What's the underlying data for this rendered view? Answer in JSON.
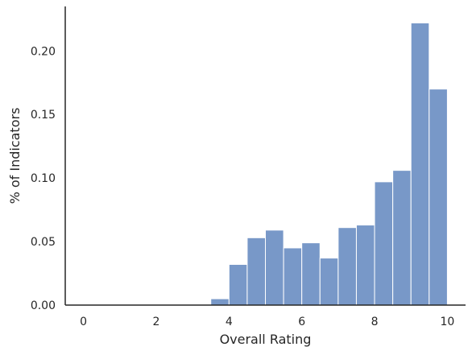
{
  "chart_data": {
    "type": "bar",
    "title": "",
    "xlabel": "Overall Rating",
    "ylabel": "% of Indicators",
    "xlim": [
      -0.5,
      10.5
    ],
    "ylim": [
      0,
      0.235
    ],
    "xticks": [
      0,
      2,
      4,
      6,
      8,
      10
    ],
    "yticks": [
      0.0,
      0.05,
      0.1,
      0.15,
      0.2
    ],
    "xtick_labels": [
      "0",
      "2",
      "4",
      "6",
      "8",
      "10"
    ],
    "ytick_labels": [
      "0.00",
      "0.05",
      "0.10",
      "0.15",
      "0.20"
    ],
    "bins": [
      {
        "x0": 3.5,
        "x1": 4.0,
        "value": 0.005
      },
      {
        "x0": 4.0,
        "x1": 4.5,
        "value": 0.032
      },
      {
        "x0": 4.5,
        "x1": 5.0,
        "value": 0.053
      },
      {
        "x0": 5.0,
        "x1": 5.5,
        "value": 0.059
      },
      {
        "x0": 5.5,
        "x1": 6.0,
        "value": 0.045
      },
      {
        "x0": 6.0,
        "x1": 6.5,
        "value": 0.049
      },
      {
        "x0": 6.5,
        "x1": 7.0,
        "value": 0.037
      },
      {
        "x0": 7.0,
        "x1": 7.5,
        "value": 0.061
      },
      {
        "x0": 7.5,
        "x1": 8.0,
        "value": 0.063
      },
      {
        "x0": 8.0,
        "x1": 8.5,
        "value": 0.097
      },
      {
        "x0": 8.5,
        "x1": 9.0,
        "value": 0.106
      },
      {
        "x0": 9.0,
        "x1": 9.5,
        "value": 0.222
      },
      {
        "x0": 9.5,
        "x1": 10.0,
        "value": 0.17
      }
    ],
    "grid": false,
    "legend": "none",
    "colors": {
      "bar_fill": "#7898c8",
      "bar_edge": "#ffffff",
      "axis": "#262626",
      "text": "#262626"
    }
  }
}
